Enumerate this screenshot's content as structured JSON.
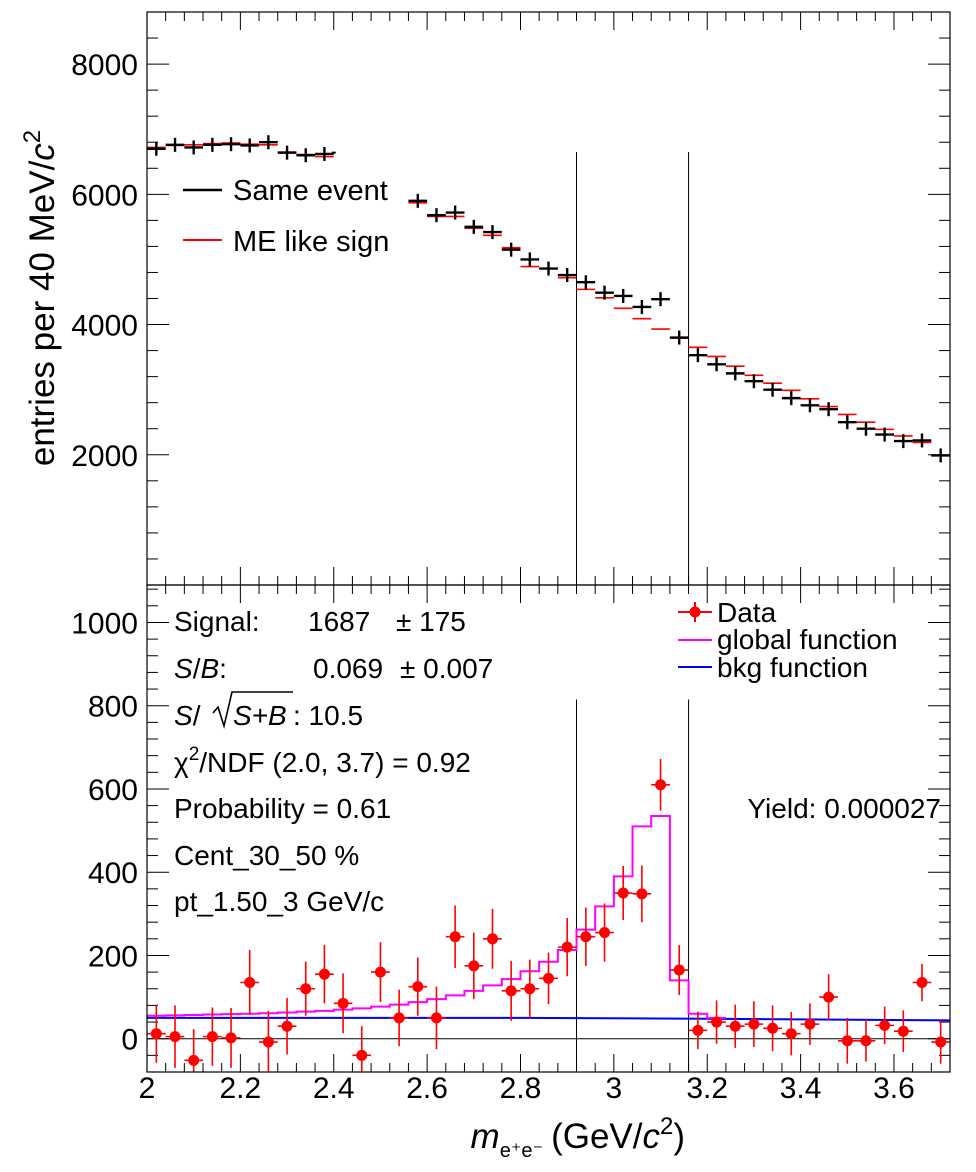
{
  "chart_data": [
    {
      "type": "scatter",
      "panel": "top",
      "ylabel_main": "entries per 40 MeV/",
      "ylabel_c": "c",
      "ylabel_exp": "2",
      "xlim": [
        2.0,
        3.72
      ],
      "ylim": [
        0,
        8800
      ],
      "yticks": [
        2000,
        4000,
        6000,
        8000
      ],
      "yticklabels": [
        "2000",
        "4000",
        "6000",
        "8000"
      ],
      "vlines": [
        2.92,
        3.16
      ],
      "vline_top": 6650,
      "legend": [
        {
          "label": "Same event",
          "color": "#000000"
        },
        {
          "label": "ME like sign",
          "color": "#ff0000"
        }
      ],
      "series": [
        {
          "name": "Same event",
          "color": "#000000",
          "x": [
            2.02,
            2.06,
            2.1,
            2.14,
            2.18,
            2.22,
            2.26,
            2.3,
            2.34,
            2.38,
            2.58,
            2.62,
            2.66,
            2.7,
            2.74,
            2.78,
            2.82,
            2.86,
            2.9,
            2.94,
            2.98,
            3.02,
            3.06,
            3.1,
            3.14,
            3.18,
            3.22,
            3.26,
            3.3,
            3.34,
            3.38,
            3.42,
            3.46,
            3.5,
            3.54,
            3.58,
            3.62,
            3.66,
            3.7
          ],
          "y": [
            6700,
            6760,
            6720,
            6760,
            6770,
            6750,
            6800,
            6640,
            6600,
            6620,
            5900,
            5680,
            5720,
            5500,
            5420,
            5150,
            5000,
            4860,
            4760,
            4650,
            4490,
            4440,
            4270,
            4390,
            3800,
            3530,
            3390,
            3250,
            3130,
            3000,
            2870,
            2760,
            2700,
            2500,
            2400,
            2310,
            2210,
            2220,
            1990
          ]
        },
        {
          "name": "ME like sign",
          "color": "#ff0000",
          "x": [
            2.02,
            2.06,
            2.1,
            2.14,
            2.18,
            2.22,
            2.26,
            2.3,
            2.34,
            2.38,
            2.58,
            2.62,
            2.66,
            2.7,
            2.74,
            2.78,
            2.82,
            2.86,
            2.9,
            2.94,
            2.98,
            3.02,
            3.06,
            3.1,
            3.14,
            3.18,
            3.22,
            3.26,
            3.3,
            3.34,
            3.38,
            3.42,
            3.46,
            3.5,
            3.54,
            3.58,
            3.62,
            3.66,
            3.7
          ],
          "y": [
            6720,
            6750,
            6760,
            6780,
            6790,
            6770,
            6760,
            6650,
            6610,
            6580,
            5870,
            5660,
            5660,
            5480,
            5370,
            5180,
            4890,
            4860,
            4720,
            4540,
            4410,
            4250,
            4090,
            3930,
            3790,
            3650,
            3510,
            3360,
            3220,
            3100,
            2990,
            2860,
            2740,
            2620,
            2500,
            2390,
            2290,
            2190,
            1990
          ]
        }
      ]
    },
    {
      "type": "scatter",
      "panel": "bottom",
      "xlabel_main": "m",
      "xlabel_sub": "e⁺e⁻",
      "xlabel_rest": "(GeV/",
      "xlabel_c": "c",
      "xlabel_exp": "2",
      "xlabel_close": ")",
      "xlim": [
        2.0,
        3.72
      ],
      "ylim": [
        -80,
        1090
      ],
      "yticks": [
        0,
        200,
        400,
        600,
        800,
        1000
      ],
      "yticklabels": [
        "0",
        "200",
        "400",
        "600",
        "800",
        "1000"
      ],
      "xticks": [
        2.0,
        2.2,
        2.4,
        2.6,
        2.8,
        3.0,
        3.2,
        3.4,
        3.6
      ],
      "xticklabels": [
        "2",
        "2.2",
        "2.4",
        "2.6",
        "2.8",
        "3",
        "3.2",
        "3.4",
        "3.6"
      ],
      "vlines": [
        2.92,
        3.16
      ],
      "vline_top": 815,
      "annotations": {
        "signal_label": "Signal:",
        "signal_value": "1687",
        "signal_err": "± 175",
        "sb_s": "S",
        "sb_slash": "/",
        "sb_b": "B",
        "sb_colon": ":",
        "sb_value": "0.069",
        "sb_err": "± 0.007",
        "signif_s": "S",
        "signif_slash": "/",
        "signif_rad": "S+B",
        "signif_value": ": 10.5",
        "chi2_chi": "χ",
        "chi2_exp": "2",
        "chi2_rest": "/NDF (2.0, 3.7) = 0.92",
        "probability": "Probability = 0.61",
        "centrality": "Cent_30_50 %",
        "pt": "pt_1.50_3 GeV/c",
        "yield": "Yield: 0.000027"
      },
      "legend": [
        {
          "label": "Data",
          "color": "#ff0000"
        },
        {
          "label": "global function",
          "color": "#ff00ff"
        },
        {
          "label": "bkg function",
          "color": "#0000ff"
        }
      ],
      "series": [
        {
          "name": "Data",
          "color": "#ff0000",
          "x": [
            2.02,
            2.06,
            2.1,
            2.14,
            2.18,
            2.22,
            2.26,
            2.3,
            2.34,
            2.38,
            2.42,
            2.46,
            2.5,
            2.54,
            2.58,
            2.62,
            2.66,
            2.7,
            2.74,
            2.78,
            2.82,
            2.86,
            2.9,
            2.94,
            2.98,
            3.02,
            3.06,
            3.1,
            3.14,
            3.18,
            3.22,
            3.26,
            3.3,
            3.34,
            3.38,
            3.42,
            3.46,
            3.5,
            3.54,
            3.58,
            3.62,
            3.66,
            3.7
          ],
          "y": [
            12,
            5,
            -52,
            5,
            2,
            135,
            -8,
            30,
            120,
            155,
            85,
            -40,
            160,
            50,
            125,
            50,
            245,
            175,
            240,
            115,
            120,
            145,
            220,
            245,
            255,
            350,
            348,
            610,
            165,
            20,
            40,
            30,
            35,
            25,
            12,
            35,
            100,
            -5,
            -5,
            32,
            18,
            135,
            -8
          ],
          "err": [
            70,
            75,
            75,
            70,
            72,
            78,
            75,
            68,
            65,
            70,
            72,
            70,
            72,
            68,
            70,
            75,
            75,
            80,
            72,
            72,
            70,
            62,
            70,
            70,
            70,
            65,
            68,
            62,
            60,
            45,
            52,
            52,
            55,
            55,
            52,
            50,
            55,
            55,
            50,
            45,
            50,
            45,
            52
          ]
        },
        {
          "name": "global function",
          "color": "#ff00ff",
          "type": "step",
          "edges": [
            2.0,
            2.04,
            2.08,
            2.12,
            2.16,
            2.2,
            2.24,
            2.28,
            2.32,
            2.36,
            2.4,
            2.44,
            2.48,
            2.52,
            2.56,
            2.6,
            2.64,
            2.68,
            2.72,
            2.76,
            2.8,
            2.84,
            2.88,
            2.92,
            2.96,
            3.0,
            3.04,
            3.08,
            3.12,
            3.16,
            3.2,
            3.24
          ],
          "y": [
            55,
            56,
            57,
            58,
            59,
            60,
            61,
            63,
            65,
            67,
            70,
            73,
            77,
            82,
            88,
            95,
            104,
            115,
            128,
            143,
            162,
            185,
            213,
            262,
            318,
            390,
            510,
            535,
            140,
            60,
            50
          ]
        },
        {
          "name": "bkg function",
          "color": "#0000ff",
          "x": [
            2.0,
            2.4,
            2.8,
            3.2,
            3.72
          ],
          "y": [
            50,
            50,
            50,
            48,
            44
          ]
        }
      ]
    }
  ]
}
